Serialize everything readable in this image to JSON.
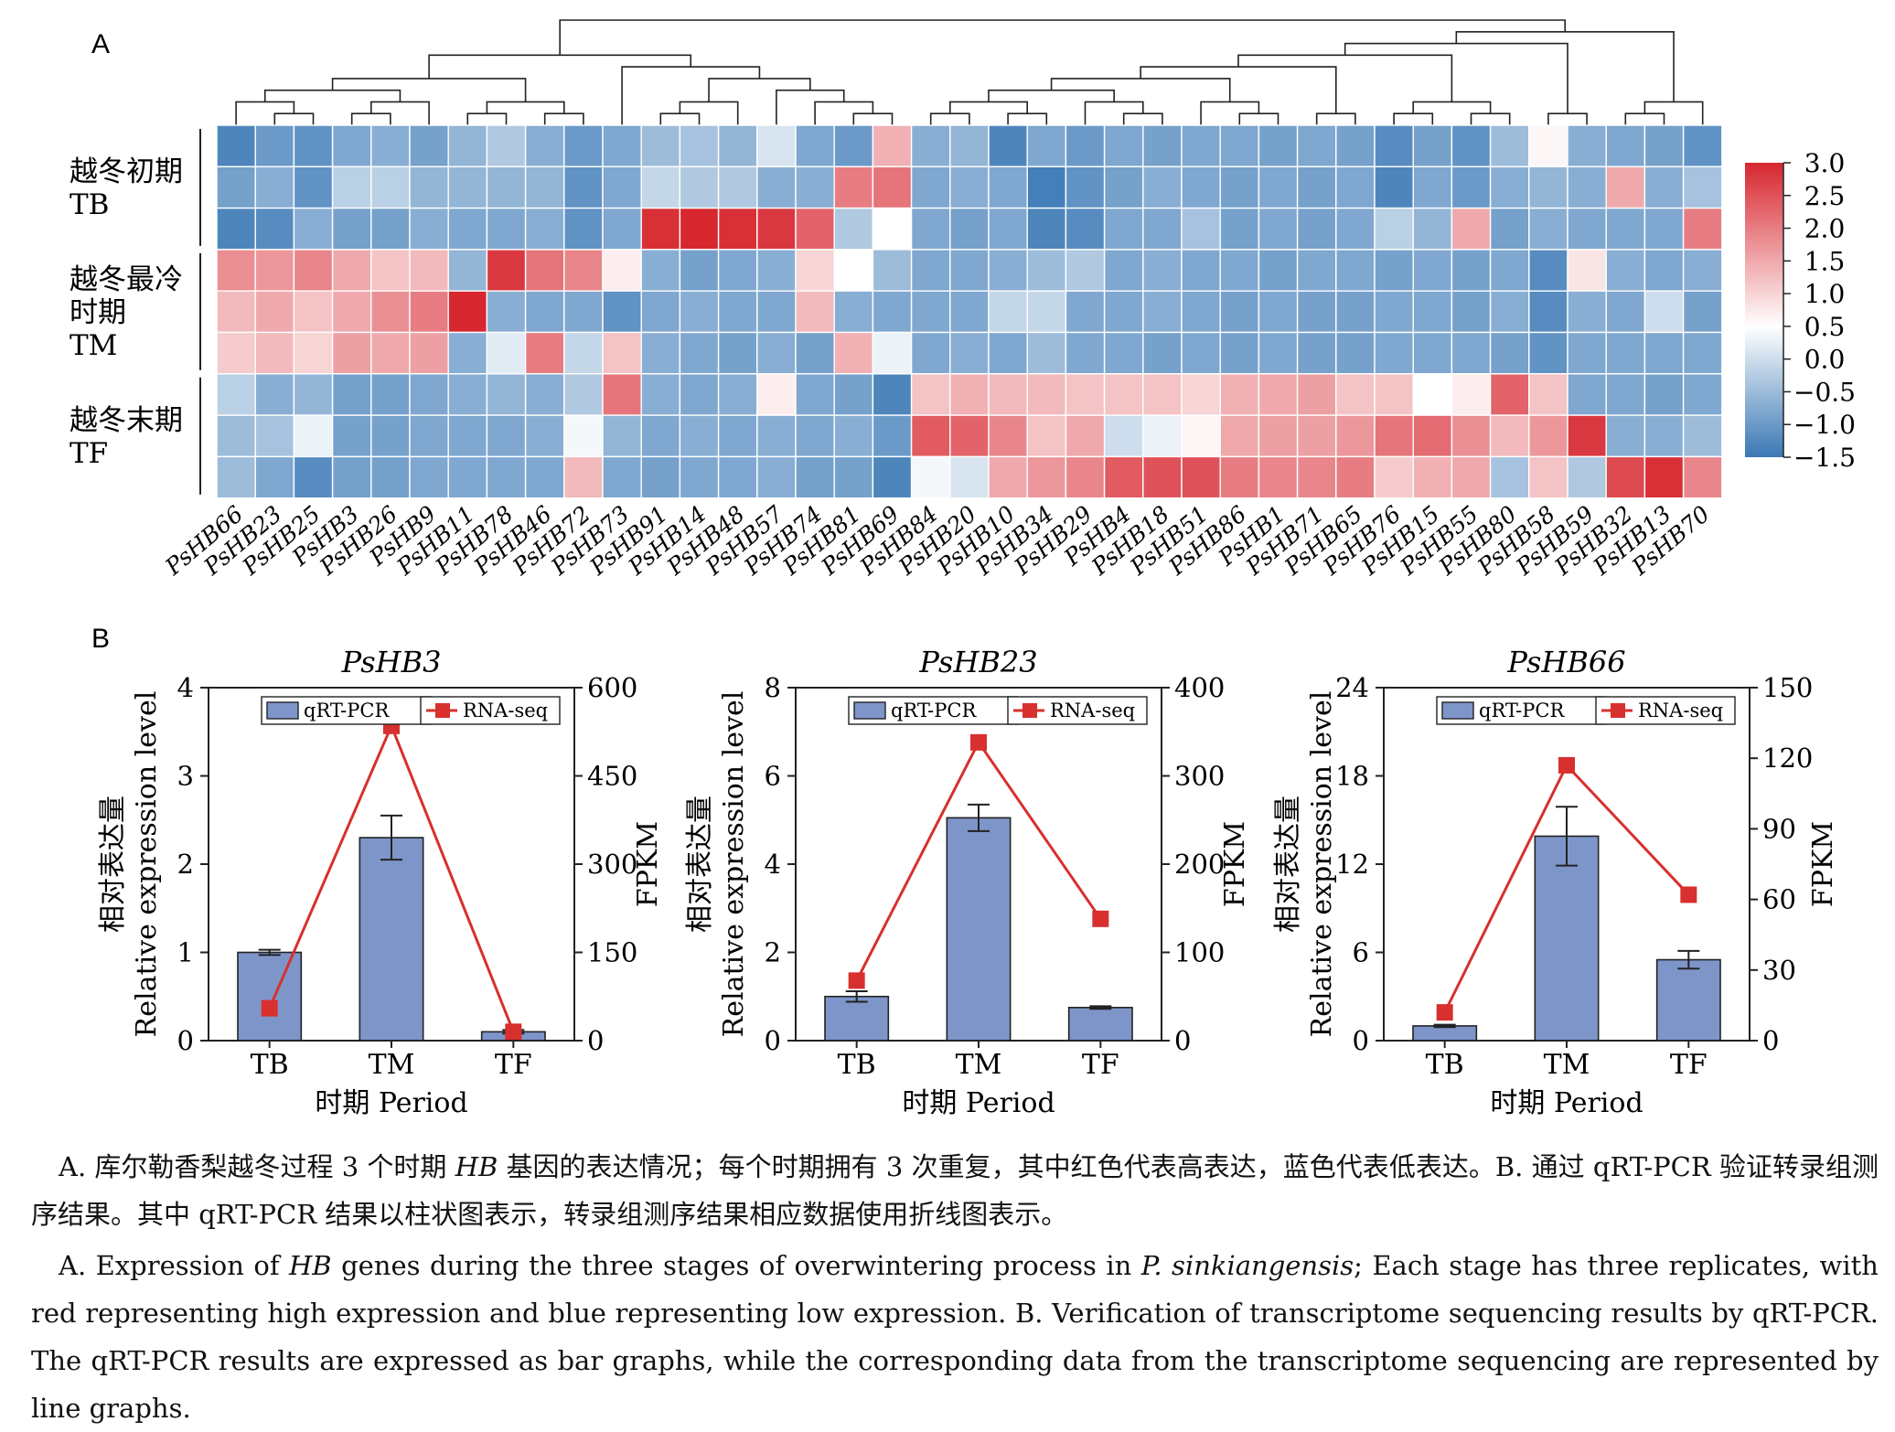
{
  "panelA": {
    "label": "A",
    "genes": [
      "PsHB66",
      "PsHB23",
      "PsHB25",
      "PsHB3",
      "PsHB26",
      "PsHB9",
      "PsHB11",
      "PsHB78",
      "PsHB46",
      "PsHB72",
      "PsHB73",
      "PsHB91",
      "PsHB14",
      "PsHB48",
      "PsHB57",
      "PsHB74",
      "PsHB81",
      "PsHB69",
      "PsHB84",
      "PsHB20",
      "PsHB10",
      "PsHB34",
      "PsHB29",
      "PsHB4",
      "PsHB18",
      "PsHB51",
      "PsHB86",
      "PsHB1",
      "PsHB71",
      "PsHB65",
      "PsHB76",
      "PsHB15",
      "PsHB55",
      "PsHB80",
      "PsHB58",
      "PsHB59",
      "PsHB32",
      "PsHB13",
      "PsHB70"
    ],
    "groups": [
      {
        "lines": [
          "越冬初期",
          "TB"
        ]
      },
      {
        "lines": [
          "越冬最冷",
          "时期",
          "TM"
        ]
      },
      {
        "lines": [
          "越冬末期",
          "TF"
        ]
      }
    ],
    "colorbar": {
      "ticks": [
        "3.0",
        "2.5",
        "2.0",
        "1.5",
        "1.0",
        "0.5",
        "0.0",
        "-0.5",
        "-1.0",
        "-1.5"
      ],
      "min": -1.5,
      "max": 3.0,
      "low_color": "#3a78b5",
      "mid_color": "#ffffff",
      "high_color": "#d7272f"
    },
    "matrix": [
      [
        -1.3,
        -1.0,
        -1.1,
        -0.8,
        -0.7,
        -0.9,
        -0.6,
        -0.3,
        -0.7,
        -1.0,
        -0.8,
        -0.5,
        -0.4,
        -0.6,
        0.1,
        -0.8,
        -1.0,
        1.4,
        -0.7,
        -0.6,
        -1.3,
        -0.8,
        -1.0,
        -0.8,
        -0.9,
        -0.8,
        -0.8,
        -0.9,
        -0.8,
        -0.9,
        -1.2,
        -0.9,
        -1.1,
        -0.5,
        0.6,
        -0.7,
        -0.8,
        -0.9,
        -1.1
      ],
      [
        -0.9,
        -0.7,
        -1.1,
        -0.2,
        -0.2,
        -0.6,
        -0.6,
        -0.6,
        -0.6,
        -1.1,
        -0.8,
        -0.1,
        -0.3,
        -0.3,
        -0.7,
        -0.7,
        2.0,
        2.1,
        -0.8,
        -0.7,
        -0.8,
        -1.4,
        -1.1,
        -0.9,
        -0.7,
        -0.8,
        -0.9,
        -0.8,
        -0.9,
        -0.8,
        -1.3,
        -0.8,
        -1.0,
        -0.7,
        -0.6,
        -0.7,
        1.5,
        -0.7,
        -0.4
      ],
      [
        -1.3,
        -1.2,
        -0.7,
        -0.9,
        -0.9,
        -0.7,
        -0.8,
        -0.8,
        -0.7,
        -1.1,
        -0.8,
        2.9,
        3.0,
        2.9,
        2.8,
        2.3,
        -0.3,
        0.5,
        -0.8,
        -0.9,
        -0.8,
        -1.3,
        -1.2,
        -0.8,
        -0.8,
        -0.4,
        -0.9,
        -0.8,
        -0.9,
        -0.8,
        -0.2,
        -0.6,
        1.5,
        -0.9,
        -0.7,
        -0.8,
        -0.8,
        -0.8,
        2.0
      ]
    ],
    "matrixTM": [
      [
        1.8,
        1.7,
        1.9,
        1.5,
        1.2,
        1.3,
        -0.6,
        2.8,
        2.1,
        1.9,
        0.7,
        -0.7,
        -0.9,
        -0.8,
        -0.7,
        1.0,
        0.5,
        -0.5,
        -0.8,
        -0.8,
        -0.7,
        -0.5,
        -0.3,
        -0.8,
        -0.7,
        -0.8,
        -0.8,
        -0.9,
        -0.8,
        -0.8,
        -0.9,
        -0.8,
        -0.9,
        -0.8,
        -1.2,
        0.8,
        -0.7,
        -0.8,
        -0.7
      ],
      [
        1.3,
        1.5,
        1.2,
        1.5,
        1.8,
        2.0,
        3.0,
        -0.7,
        -0.8,
        -0.8,
        -1.1,
        -0.8,
        -0.7,
        -0.8,
        -0.8,
        1.3,
        -0.7,
        -0.8,
        -0.8,
        -0.8,
        -0.1,
        -0.1,
        -0.8,
        -0.8,
        -0.7,
        -0.8,
        -0.9,
        -0.8,
        -0.9,
        -0.9,
        -0.8,
        -0.8,
        -0.9,
        -0.7,
        -1.2,
        -0.7,
        -0.8,
        0.0,
        -0.9
      ],
      [
        1.1,
        1.3,
        1.0,
        1.6,
        1.5,
        1.6,
        -0.7,
        0.2,
        2.0,
        -0.1,
        1.2,
        -0.7,
        -0.8,
        -0.9,
        -0.7,
        -0.9,
        1.4,
        0.3,
        -0.8,
        -0.7,
        -0.8,
        -0.5,
        -0.8,
        -0.8,
        -0.9,
        -0.8,
        -0.9,
        -0.8,
        -0.9,
        -0.9,
        -0.8,
        -0.8,
        -0.8,
        -0.9,
        -1.1,
        -0.8,
        -0.8,
        -0.8,
        -0.8
      ]
    ],
    "matrixTF": [
      [
        -0.2,
        -0.7,
        -0.6,
        -0.9,
        -0.9,
        -0.8,
        -0.7,
        -0.6,
        -0.7,
        -0.3,
        2.1,
        -0.7,
        -0.8,
        -0.7,
        0.7,
        -0.8,
        -0.9,
        -1.3,
        1.2,
        1.4,
        1.3,
        1.3,
        1.2,
        1.2,
        1.2,
        1.0,
        1.4,
        1.5,
        1.6,
        1.2,
        1.2,
        0.5,
        0.7,
        2.3,
        1.2,
        -0.8,
        -0.8,
        -0.9,
        -0.8
      ],
      [
        -0.5,
        -0.4,
        0.3,
        -0.9,
        -0.9,
        -0.8,
        -0.8,
        -0.8,
        -0.7,
        0.4,
        -0.6,
        -0.8,
        -0.7,
        -0.8,
        -0.7,
        -0.8,
        -0.7,
        -1.0,
        2.4,
        2.3,
        1.9,
        1.2,
        1.5,
        0.0,
        0.3,
        0.6,
        1.5,
        1.6,
        1.6,
        1.7,
        2.1,
        2.2,
        1.8,
        1.3,
        1.7,
        2.8,
        -0.7,
        -0.7,
        -0.5
      ],
      [
        -0.5,
        -0.8,
        -1.2,
        -0.9,
        -0.9,
        -0.8,
        -0.8,
        -0.8,
        -0.8,
        1.3,
        -0.8,
        -0.9,
        -0.8,
        -0.8,
        -0.7,
        -0.9,
        -0.9,
        -1.3,
        0.4,
        0.1,
        1.5,
        1.7,
        1.9,
        2.4,
        2.5,
        2.5,
        2.0,
        1.9,
        1.9,
        2.0,
        1.1,
        1.4,
        1.5,
        -0.4,
        1.2,
        -0.3,
        2.6,
        2.9,
        1.9
      ]
    ]
  },
  "panelB": {
    "label": "B",
    "legend": {
      "bar": "qRT-PCR",
      "line": "RNA-seq"
    },
    "x_axis_label": "时期 Period",
    "left_axis_label_cn": "相对表达量",
    "left_axis_label_en": "Relative expression level",
    "right_axis_label": "FPKM",
    "bar_color": "#7e95ca",
    "line_color": "#d7302e"
  },
  "chart_data": [
    {
      "type": "bar",
      "title": "PsHB3",
      "categories": [
        "TB",
        "TM",
        "TF"
      ],
      "series": [
        {
          "name": "qRT-PCR",
          "values": [
            1.0,
            2.3,
            0.1
          ],
          "errors": [
            0.03,
            0.25,
            0.02
          ],
          "axis": "left"
        },
        {
          "name": "RNA-seq",
          "values": [
            55,
            535,
            15
          ],
          "axis": "right"
        }
      ],
      "ylim": [
        0,
        4
      ],
      "yticks": [
        0,
        1,
        2,
        3,
        4
      ],
      "y2lim": [
        0,
        600
      ],
      "y2ticks": [
        0,
        150,
        300,
        450,
        600
      ],
      "xlabel": "时期 Period",
      "ylabel": "Relative expression level",
      "y2label": "FPKM"
    },
    {
      "type": "bar",
      "title": "PsHB23",
      "categories": [
        "TB",
        "TM",
        "TF"
      ],
      "series": [
        {
          "name": "qRT-PCR",
          "values": [
            1.0,
            5.05,
            0.75
          ],
          "errors": [
            0.12,
            0.3,
            0.03
          ],
          "axis": "left"
        },
        {
          "name": "RNA-seq",
          "values": [
            68,
            338,
            138
          ],
          "axis": "right"
        }
      ],
      "ylim": [
        0,
        8
      ],
      "yticks": [
        0,
        2,
        4,
        6,
        8
      ],
      "y2lim": [
        0,
        400
      ],
      "y2ticks": [
        0,
        100,
        200,
        300,
        400
      ],
      "xlabel": "时期 Period",
      "ylabel": "Relative expression level",
      "y2label": "FPKM"
    },
    {
      "type": "bar",
      "title": "PsHB66",
      "categories": [
        "TB",
        "TM",
        "TF"
      ],
      "series": [
        {
          "name": "qRT-PCR",
          "values": [
            1.0,
            13.9,
            5.5
          ],
          "errors": [
            0.08,
            2.0,
            0.6
          ],
          "axis": "left"
        },
        {
          "name": "RNA-seq",
          "values": [
            12,
            117,
            62
          ],
          "axis": "right"
        }
      ],
      "ylim": [
        0,
        24
      ],
      "yticks": [
        0,
        6,
        12,
        18,
        24
      ],
      "y2lim": [
        0,
        150
      ],
      "y2ticks": [
        0,
        30,
        60,
        90,
        120,
        150
      ],
      "xlabel": "时期 Period",
      "ylabel": "Relative expression level",
      "y2label": "FPKM"
    }
  ],
  "caption": {
    "cn_1": "A. 库尔勒香梨越冬过程 3 个时期 ",
    "cn_2": "HB",
    "cn_3": " 基因的表达情况；每个时期拥有 3 次重复，其中红色代表高表达，蓝色代表低表达。B. 通过 qRT-PCR 验证转录组测序结果。其中 qRT-PCR 结果以柱状图表示，转录组测序结果相应数据使用折线图表示。",
    "en_1": "A. Expression of ",
    "en_2": "HB",
    "en_3": " genes during the three stages of overwintering process in ",
    "en_4": "P. sinkiangensis",
    "en_5": "; Each stage has three replicates, with red representing high expression and blue representing low expression. B. Verification of transcriptome sequencing results by qRT-PCR. The qRT-PCR results are expressed as bar graphs, while the corresponding data from the transcriptome sequencing are represented by line graphs."
  }
}
